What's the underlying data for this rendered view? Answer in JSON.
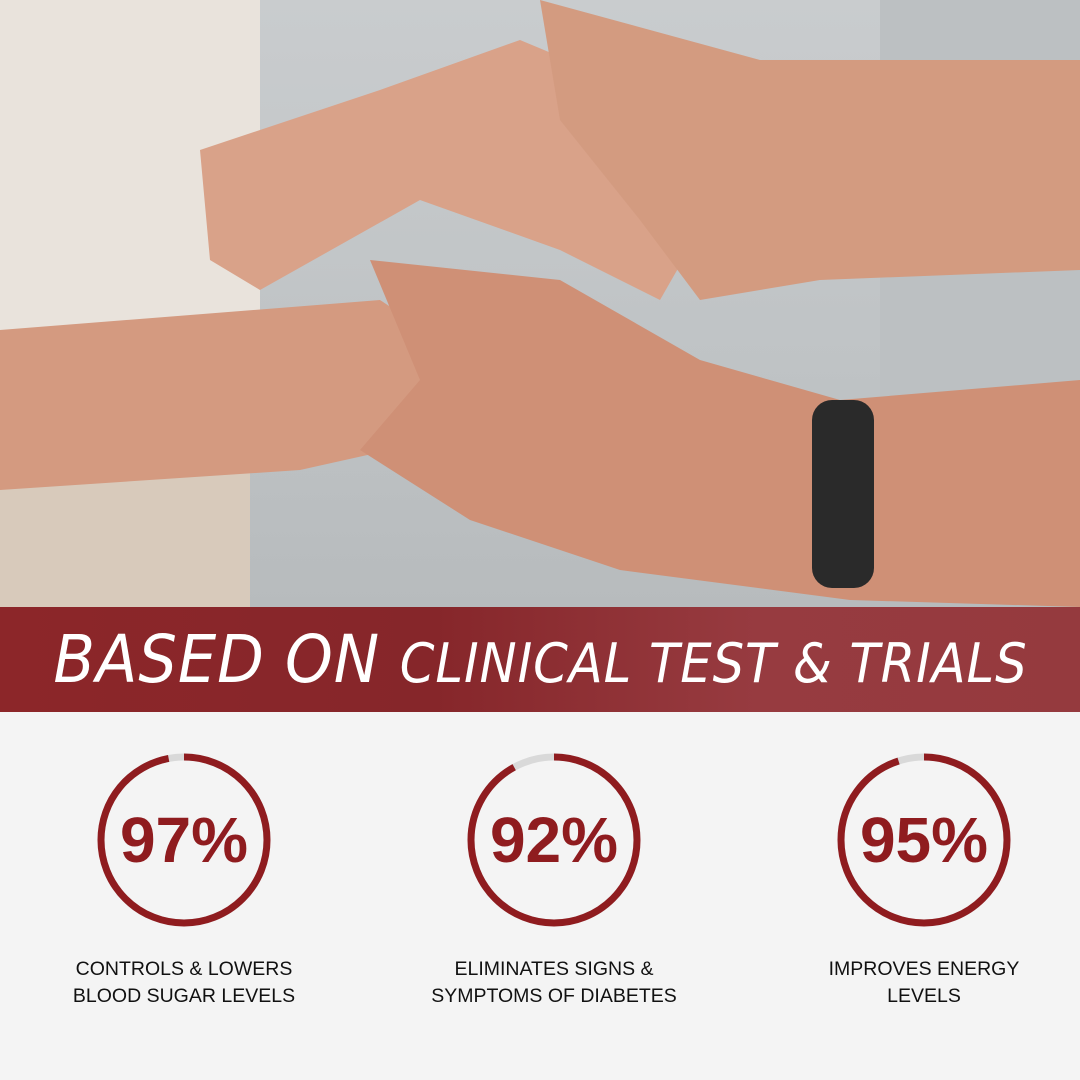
{
  "banner": {
    "part1": "BASED ON",
    "part2": "CLINICAL TEST & TRIALS"
  },
  "colors": {
    "accent": "#8f1c1f",
    "track": "#d9d9d9",
    "banner": "#8c2629",
    "background": "#f4f4f4"
  },
  "stats": [
    {
      "value": "97%",
      "percent": 97,
      "label_line1": "CONTROLS & LOWERS",
      "label_line2": "BLOOD SUGAR LEVELS"
    },
    {
      "value": "92%",
      "percent": 92,
      "label_line1": "ELIMINATES SIGNS &",
      "label_line2": "SYMPTOMS OF DIABETES"
    },
    {
      "value": "95%",
      "percent": 95,
      "label_line1": "IMPROVES ENERGY",
      "label_line2": "LEVELS"
    }
  ]
}
